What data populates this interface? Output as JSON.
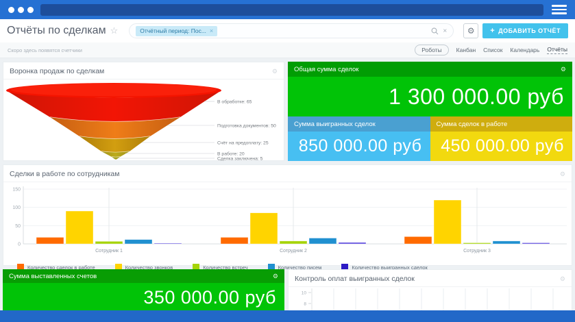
{
  "browser": {
    "window_dots": 3
  },
  "header": {
    "title": "Отчёты по сделкам",
    "star_icon": "☆",
    "filter_chip": "Отчётный период: Пос...",
    "chip_close": "×",
    "search_close": "×",
    "gear_icon": "⚙",
    "add_report_plus": "+",
    "add_report_label": "ДОБАВИТЬ ОТЧЁТ",
    "accent_color": "#42c2ec"
  },
  "subheader": {
    "hint": "Скоро здесь появятся счетчики",
    "tabs": [
      {
        "label": "Роботы",
        "style": "pill",
        "active": false
      },
      {
        "label": "Канбан",
        "style": "plain",
        "active": false
      },
      {
        "label": "Список",
        "style": "plain",
        "active": false
      },
      {
        "label": "Календарь",
        "style": "plain",
        "active": false
      },
      {
        "label": "Отчёты",
        "style": "plain",
        "active": true
      }
    ]
  },
  "cards": {
    "funnel": {
      "title": "Воронка продаж по сделкам",
      "gear_icon": "⚙"
    },
    "summary": {
      "total": {
        "title": "Общая сумма сделок",
        "value": "1 300 000.00 руб",
        "header_color": "#019d04",
        "body_color": "#01c307",
        "gear_icon": "⚙"
      },
      "won": {
        "title": "Сумма выигранных сделок",
        "value": "850 000.00 руб",
        "header_color": "#4aa0d1",
        "body_color": "#47bff2"
      },
      "in_work": {
        "title": "Сумма сделок в работе",
        "value": "450 000.00 руб",
        "header_color": "#cfad0e",
        "body_color": "#f2d90f"
      }
    },
    "deals_by_employee": {
      "title": "Сделки в работе по сотрудникам",
      "gear_icon": "⚙"
    },
    "invoices": {
      "title": "Сумма выставленных счетов",
      "value": "350 000.00 руб",
      "header_color": "#089d04",
      "body_color": "#01c307",
      "gear_icon": "⚙"
    },
    "payments": {
      "title": "Контроль оплат выигранных сделок",
      "gear_icon": "⚙"
    }
  },
  "chart_data": [
    {
      "type": "funnel",
      "title": "Воронка продаж по сделкам",
      "stages": [
        {
          "label": "В обработке",
          "value": 65,
          "color_center": "#f21505",
          "color_edge": "#cf1505"
        },
        {
          "label": "Подготовка документов",
          "value": 50,
          "color_center": "#ef7d18",
          "color_edge": "#c65f12"
        },
        {
          "label": "Счёт на предоплату",
          "value": 25,
          "color_center": "#d29e10",
          "color_edge": "#b07f08"
        },
        {
          "label": "В работе",
          "value": 20,
          "color_center": "#bcab1a",
          "color_edge": "#a3931a"
        },
        {
          "label": "Сделка заключена",
          "value": 5,
          "color_center": "#aaa41e",
          "color_edge": "#99931c"
        }
      ],
      "top_color": "#f41400"
    },
    {
      "type": "bar",
      "title": "Сделки в работе по сотрудникам",
      "categories": [
        "Сотрудник 1",
        "Сотрудник 2",
        "Сотрудник 3"
      ],
      "series": [
        {
          "name": "Количество сделок в работе",
          "color": "#ff6a00",
          "legend_color": "#ff6a00",
          "values": [
            18,
            18,
            20
          ]
        },
        {
          "name": "Количество звонков",
          "color": "#ffd400",
          "legend_color": "#ffd400",
          "values": [
            90,
            85,
            120
          ]
        },
        {
          "name": "Количество встреч",
          "color": "#a6d408",
          "legend_color": "#a6d408",
          "values": [
            7,
            8,
            3
          ]
        },
        {
          "name": "Количество писем",
          "color": "#2090d0",
          "legend_color": "#2090d0",
          "values": [
            12,
            16,
            8
          ]
        },
        {
          "name": "Количество выигранных сделок",
          "color": "#5b49dd",
          "legend_color": "#2d1ac4",
          "values": [
            2,
            4,
            3
          ]
        }
      ],
      "ylim": [
        0,
        150
      ],
      "yticks": [
        0,
        50,
        100,
        150
      ],
      "legend_position": "bottom",
      "grid": true
    },
    {
      "type": "bar",
      "title": "Контроль оплат выигранных сделок",
      "series": [],
      "yticks_visible": [
        10,
        8,
        6
      ],
      "vertical_gridlines": 12,
      "note": "empty chart, bottom cut off by window edge"
    }
  ]
}
